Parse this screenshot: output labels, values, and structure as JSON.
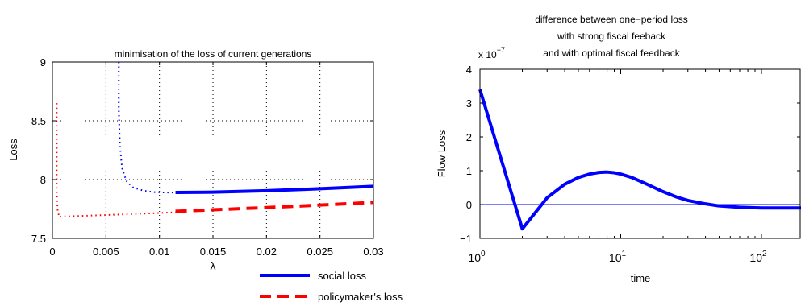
{
  "chart_data": [
    {
      "type": "line",
      "title": "minimisation of the loss of current generations",
      "xlabel": "λ",
      "ylabel": "Loss",
      "xlim": [
        0,
        0.03
      ],
      "ylim": [
        7.5,
        9
      ],
      "xticks": [
        0,
        0.005,
        0.01,
        0.015,
        0.02,
        0.025,
        0.03
      ],
      "xtick_labels": [
        "0",
        "0.005",
        "0.01",
        "0.015",
        "0.02",
        "0.025",
        "0.03"
      ],
      "yticks": [
        7.5,
        8,
        8.5,
        9
      ],
      "ytick_labels": [
        "7.5",
        "8",
        "8.5",
        "9"
      ],
      "grid": true,
      "legend_position": "below plot, right",
      "legend": [
        {
          "label": "social loss",
          "color": "#0000ff",
          "style": "solid"
        },
        {
          "label": "policymaker's loss",
          "color": "#ff0000",
          "style": "dashed"
        }
      ],
      "series": [
        {
          "name": "social loss",
          "color": "#0000ff",
          "segments": [
            {
              "style": "dotted",
              "points": [
                [
                  0.0062,
                  9.0
                ],
                [
                  0.0062,
                  8.6
                ],
                [
                  0.0063,
                  8.3
                ],
                [
                  0.0065,
                  8.1
                ],
                [
                  0.0069,
                  7.99
                ],
                [
                  0.0075,
                  7.935
                ],
                [
                  0.0085,
                  7.905
                ],
                [
                  0.0095,
                  7.893
                ],
                [
                  0.0105,
                  7.89
                ],
                [
                  0.0115,
                  7.889
                ]
              ]
            },
            {
              "style": "solid",
              "points": [
                [
                  0.0115,
                  7.89
                ],
                [
                  0.015,
                  7.893
                ],
                [
                  0.02,
                  7.905
                ],
                [
                  0.025,
                  7.922
                ],
                [
                  0.03,
                  7.943
                ]
              ]
            }
          ]
        },
        {
          "name": "policymaker's loss",
          "color": "#ff0000",
          "segments": [
            {
              "style": "dotted",
              "points": [
                [
                  0.0004,
                  8.65
                ],
                [
                  0.0004,
                  8.3
                ],
                [
                  0.0004,
                  7.9
                ],
                [
                  0.0005,
                  7.72
                ],
                [
                  0.0007,
                  7.68
                ]
              ]
            },
            {
              "style": "dotted",
              "points": [
                [
                  0.0007,
                  7.685
                ],
                [
                  0.003,
                  7.692
                ],
                [
                  0.006,
                  7.702
                ],
                [
                  0.009,
                  7.712
                ],
                [
                  0.0115,
                  7.722
                ]
              ]
            },
            {
              "style": "dashed",
              "points": [
                [
                  0.0115,
                  7.73
                ],
                [
                  0.015,
                  7.743
                ],
                [
                  0.02,
                  7.762
                ],
                [
                  0.025,
                  7.783
                ],
                [
                  0.03,
                  7.806
                ]
              ]
            }
          ]
        }
      ]
    },
    {
      "type": "line",
      "title_lines": [
        "difference between one−period loss",
        "with strong fiscal feeback",
        "and with optimal fiscal feedback"
      ],
      "xlabel": "time",
      "ylabel": "Flow Loss",
      "y_exponent_label": "x 10",
      "y_exponent": "−7",
      "xscale": "log",
      "xlim": [
        1,
        200
      ],
      "ylim": [
        -1,
        4
      ],
      "xticks": [
        1,
        10,
        100
      ],
      "xtick_base": "10",
      "xtick_exponents": [
        "0",
        "1",
        "2"
      ],
      "yticks": [
        -1,
        0,
        1,
        2,
        3,
        4
      ],
      "ytick_labels": [
        "−1",
        "0",
        "1",
        "2",
        "3",
        "4"
      ],
      "grid": false,
      "reference_line": {
        "y": 0,
        "color": "#0000ff"
      },
      "series": [
        {
          "color": "#0000ff",
          "points": [
            [
              1,
              3.4
            ],
            [
              2,
              -0.72
            ],
            [
              3,
              0.2
            ],
            [
              4,
              0.6
            ],
            [
              5,
              0.8
            ],
            [
              6,
              0.9
            ],
            [
              7,
              0.95
            ],
            [
              8,
              0.96
            ],
            [
              9,
              0.94
            ],
            [
              10,
              0.9
            ],
            [
              12,
              0.8
            ],
            [
              15,
              0.62
            ],
            [
              20,
              0.38
            ],
            [
              25,
              0.22
            ],
            [
              30,
              0.12
            ],
            [
              40,
              0.02
            ],
            [
              50,
              -0.04
            ],
            [
              70,
              -0.08
            ],
            [
              100,
              -0.1
            ],
            [
              200,
              -0.1
            ]
          ]
        }
      ]
    }
  ]
}
